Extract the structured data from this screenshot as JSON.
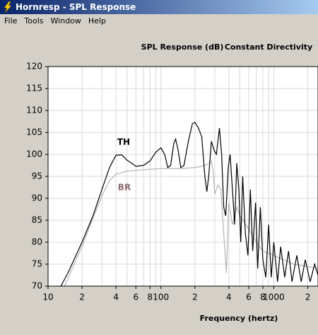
{
  "window": {
    "title": "Hornresp - SPL Response"
  },
  "menu": [
    "File",
    "Tools",
    "Window",
    "Help"
  ],
  "chart_data": {
    "type": "line",
    "title": "SPL Response (dB)",
    "subtitle": "Constant Directivity",
    "x_label": "Frequency (hertz)",
    "x_scale": "log",
    "xlim": [
      10,
      2500
    ],
    "ylim": [
      70,
      120
    ],
    "xticks": [
      10,
      {
        "value": 20,
        "label": "2"
      },
      {
        "value": 40,
        "label": "4"
      },
      {
        "value": 60,
        "label": "6"
      },
      {
        "value": 80,
        "label": "8"
      },
      100,
      {
        "value": 200,
        "label": "2"
      },
      {
        "value": 400,
        "label": "4"
      },
      {
        "value": 600,
        "label": "6"
      },
      {
        "value": 800,
        "label": "8"
      },
      1000,
      {
        "value": 2000,
        "label": "2"
      }
    ],
    "minor_xticks": [
      30,
      50,
      70,
      90,
      300,
      500,
      700,
      900
    ],
    "yticks": [
      70,
      75,
      80,
      85,
      90,
      95,
      100,
      105,
      110,
      115,
      120
    ],
    "grid": true,
    "series": [
      {
        "name": "TH",
        "color": "#000000",
        "x": [
          13,
          15,
          20,
          25,
          30,
          35,
          40,
          45,
          50,
          60,
          70,
          80,
          90,
          100,
          108,
          115,
          122,
          130,
          135,
          142,
          150,
          160,
          175,
          190,
          200,
          215,
          230,
          245,
          255,
          265,
          280,
          295,
          310,
          330,
          345,
          360,
          375,
          395,
          410,
          430,
          450,
          470,
          490,
          510,
          530,
          560,
          590,
          620,
          650,
          690,
          720,
          760,
          800,
          850,
          900,
          950,
          1000,
          1080,
          1150,
          1250,
          1350,
          1450,
          1600,
          1750,
          1900,
          2100,
          2300,
          2500
        ],
        "values": [
          70,
          73,
          80,
          86,
          92,
          97,
          99.8,
          99.9,
          98.7,
          97.3,
          97.5,
          98.5,
          100.5,
          101.5,
          100,
          97,
          97.5,
          102.5,
          103.5,
          101,
          97,
          97.5,
          103,
          107,
          107.3,
          106,
          104,
          95,
          91.5,
          95,
          103,
          101,
          100,
          106,
          100,
          88,
          86,
          97,
          100,
          92,
          84,
          98,
          92,
          80,
          95,
          82,
          77,
          92,
          78,
          89,
          74,
          88,
          76,
          72,
          84,
          72,
          80,
          71,
          79,
          72,
          78,
          71,
          77,
          71,
          76,
          71,
          75,
          72
        ]
      },
      {
        "name": "BR",
        "color": "#b4b4b4",
        "x": [
          14,
          20,
          25,
          30,
          35,
          40,
          50,
          70,
          100,
          150,
          200,
          230,
          260,
          280,
          290,
          300,
          320,
          340,
          360,
          380,
          400,
          430,
          470,
          500,
          600,
          700,
          800,
          1000,
          1500,
          2500
        ],
        "values": [
          70,
          79,
          85.5,
          90.5,
          94,
          95.5,
          96.2,
          96.5,
          96.8,
          96.8,
          97,
          97.3,
          97.8,
          98.5,
          96,
          91,
          93,
          92,
          82,
          73,
          89,
          84,
          88,
          86,
          83,
          80,
          78,
          77,
          75,
          74
        ]
      }
    ]
  }
}
